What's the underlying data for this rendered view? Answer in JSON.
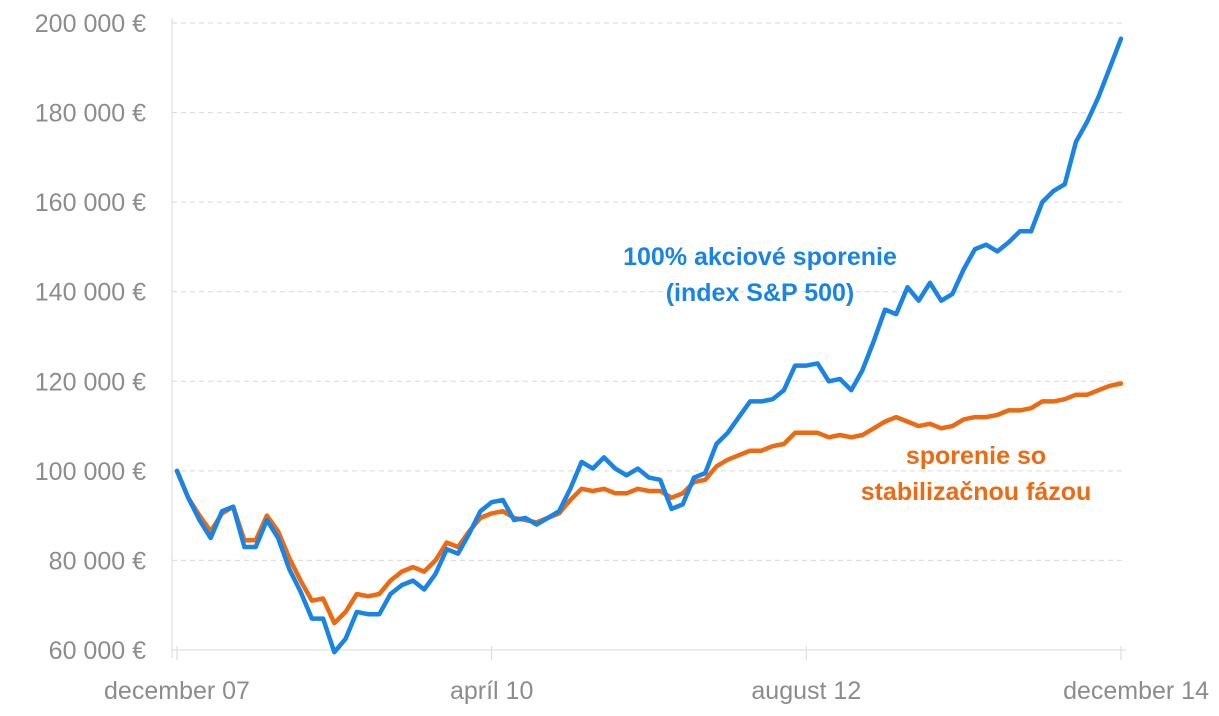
{
  "chart_data": {
    "type": "line",
    "title": "",
    "xlabel": "",
    "ylabel": "",
    "ylim": [
      60000,
      200000
    ],
    "yticks": [
      {
        "value": 60000,
        "label": "60 000 €"
      },
      {
        "value": 80000,
        "label": "80 000 €"
      },
      {
        "value": 100000,
        "label": "100 000 €"
      },
      {
        "value": 120000,
        "label": "120 000 €"
      },
      {
        "value": 140000,
        "label": "140 000 €"
      },
      {
        "value": 160000,
        "label": "160 000 €"
      },
      {
        "value": 180000,
        "label": "180 000 €"
      },
      {
        "value": 200000,
        "label": "200 000 €"
      }
    ],
    "xticks": [
      {
        "date": "2007-12",
        "label": "december 07"
      },
      {
        "date": "2010-04",
        "label": "apríl 10"
      },
      {
        "date": "2012-08",
        "label": "august 12"
      },
      {
        "date": "2014-12",
        "label": "december 14"
      }
    ],
    "grid": true,
    "x": [
      "2007-12",
      "2008-01",
      "2008-02",
      "2008-03",
      "2008-04",
      "2008-05",
      "2008-06",
      "2008-07",
      "2008-08",
      "2008-09",
      "2008-10",
      "2008-11",
      "2008-12",
      "2009-01",
      "2009-02",
      "2009-03",
      "2009-04",
      "2009-05",
      "2009-06",
      "2009-07",
      "2009-08",
      "2009-09",
      "2009-10",
      "2009-11",
      "2009-12",
      "2010-01",
      "2010-02",
      "2010-03",
      "2010-04",
      "2010-05",
      "2010-06",
      "2010-07",
      "2010-08",
      "2010-09",
      "2010-10",
      "2010-11",
      "2010-12",
      "2011-01",
      "2011-02",
      "2011-03",
      "2011-04",
      "2011-05",
      "2011-06",
      "2011-07",
      "2011-08",
      "2011-09",
      "2011-10",
      "2011-11",
      "2011-12",
      "2012-01",
      "2012-02",
      "2012-03",
      "2012-04",
      "2012-05",
      "2012-06",
      "2012-07",
      "2012-08",
      "2012-09",
      "2012-10",
      "2012-11",
      "2012-12",
      "2013-01",
      "2013-02",
      "2013-03",
      "2013-04",
      "2013-05",
      "2013-06",
      "2013-07",
      "2013-08",
      "2013-09",
      "2013-10",
      "2013-11",
      "2013-12",
      "2014-01",
      "2014-02",
      "2014-03",
      "2014-04",
      "2014-05",
      "2014-06",
      "2014-07",
      "2014-08",
      "2014-09",
      "2014-10",
      "2014-11",
      "2014-12"
    ],
    "series": [
      {
        "name": "100% akciové sporenie (index S&P 500)",
        "color": "#1a83e6",
        "values": [
          100000,
          94000,
          89000,
          85000,
          91000,
          92000,
          83000,
          83000,
          89000,
          85000,
          78000,
          73000,
          67000,
          67000,
          59500,
          62500,
          68500,
          68000,
          68000,
          72500,
          74500,
          75500,
          73500,
          77000,
          82500,
          81500,
          86000,
          91000,
          93000,
          93500,
          89000,
          89500,
          88000,
          89500,
          91000,
          96000,
          102000,
          100500,
          103000,
          100500,
          99000,
          100500,
          98500,
          98000,
          91500,
          92500,
          98500,
          99500,
          106000,
          108500,
          112000,
          115500,
          115500,
          116000,
          118000,
          123500,
          123500,
          124000,
          120000,
          120500,
          118000,
          122500,
          129000,
          136000,
          135000,
          141000,
          138000,
          142000,
          138000,
          139500,
          145000,
          149500,
          150500,
          149000,
          151000,
          153500,
          153500,
          160000,
          162500,
          164000,
          173500,
          178000,
          183500,
          190000,
          196500
        ]
      },
      {
        "name": "sporenie so stabilizačnou fázou",
        "color": "#ec6a11",
        "values": [
          100000,
          94000,
          90000,
          86500,
          90500,
          92000,
          84500,
          84500,
          90000,
          86500,
          80500,
          75500,
          71000,
          71500,
          66000,
          68500,
          72500,
          72000,
          72500,
          75500,
          77500,
          78500,
          77500,
          80000,
          84000,
          83000,
          86500,
          89500,
          90500,
          91000,
          89500,
          89000,
          88500,
          89500,
          90500,
          93500,
          96000,
          95500,
          96000,
          95000,
          95000,
          96000,
          95500,
          95500,
          94000,
          95000,
          97500,
          98000,
          101000,
          102500,
          103500,
          104500,
          104500,
          105500,
          106000,
          108500,
          108500,
          108500,
          107500,
          108000,
          107500,
          108000,
          109500,
          111000,
          112000,
          111000,
          110000,
          110500,
          109500,
          110000,
          111500,
          112000,
          112000,
          112500,
          113500,
          113500,
          114000,
          115500,
          115500,
          116000,
          117000,
          117000,
          118000,
          119000,
          119500
        ]
      }
    ],
    "annotations": [
      {
        "series": 0,
        "lines": [
          "100% akciové sporenie",
          "(index S&P 500)"
        ],
        "color": "#1a83e6"
      },
      {
        "series": 1,
        "lines": [
          "sporenie so",
          "stabilizačnou fázou"
        ],
        "color": "#ec6a11"
      }
    ]
  }
}
